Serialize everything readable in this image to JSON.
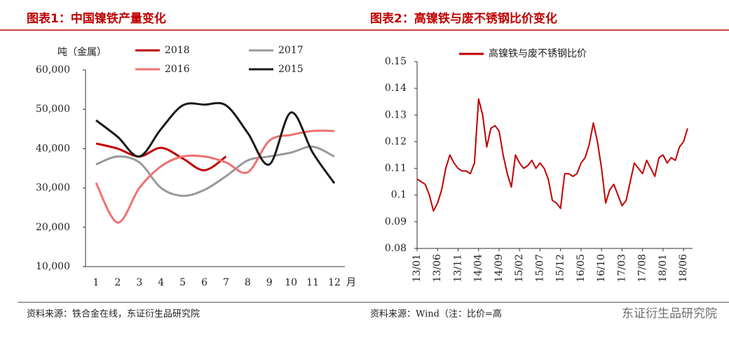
{
  "chart_data": [
    {
      "type": "line",
      "title": "图表1：中国镍铁产量变化",
      "y_label": "吨（金属）",
      "x_unit": "月",
      "categories": [
        "1",
        "2",
        "3",
        "4",
        "5",
        "6",
        "7",
        "8",
        "9",
        "10",
        "11",
        "12"
      ],
      "series": [
        {
          "name": "2018",
          "color": "#c00000",
          "values": [
            41300,
            40000,
            38000,
            40200,
            37500,
            34500,
            38000,
            null,
            null,
            null,
            null,
            null
          ]
        },
        {
          "name": "2017",
          "color": "#999999",
          "values": [
            36000,
            38000,
            36500,
            30000,
            28000,
            29500,
            33000,
            37000,
            38000,
            39000,
            40500,
            38000
          ]
        },
        {
          "name": "2016",
          "color": "#f07070",
          "values": [
            31300,
            21200,
            30000,
            35500,
            38000,
            38000,
            36500,
            34000,
            42000,
            43500,
            44500,
            44500
          ]
        },
        {
          "name": "2015",
          "color": "#1a1a1a",
          "values": [
            47200,
            43000,
            38000,
            45000,
            51000,
            51200,
            51000,
            44000,
            36000,
            49200,
            39000,
            31200
          ]
        }
      ],
      "ylim": [
        10000,
        60000
      ],
      "yticks": [
        {
          "value": 10000,
          "label": "10,000"
        },
        {
          "value": 20000,
          "label": "20,000"
        },
        {
          "value": 30000,
          "label": "30,000"
        },
        {
          "value": 40000,
          "label": "40,000"
        },
        {
          "value": 50000,
          "label": "50,000"
        },
        {
          "value": 60000,
          "label": "60,000"
        }
      ],
      "source": "资料来源：铁合金在线，东证衍生品研究院"
    },
    {
      "type": "line",
      "title": "图表2：高镍铁与废不锈钢比价变化",
      "categories": [
        "13/01",
        null,
        null,
        null,
        null,
        "13/06",
        null,
        null,
        null,
        null,
        "13/11",
        null,
        null,
        null,
        null,
        "14/04",
        null,
        null,
        null,
        null,
        "14/09",
        null,
        null,
        null,
        null,
        "15/02",
        null,
        null,
        null,
        null,
        "15/07",
        null,
        null,
        null,
        null,
        "15/12",
        null,
        null,
        null,
        null,
        "16/05",
        null,
        null,
        null,
        null,
        "16/10",
        null,
        null,
        null,
        null,
        "17/03",
        null,
        null,
        null,
        null,
        "17/08",
        null,
        null,
        null,
        null,
        "18/01",
        null,
        null,
        null,
        null,
        "18/06",
        null
      ],
      "series": [
        {
          "name": "高镍铁与废不锈钢比价",
          "color": "#c00000",
          "values": [
            0.106,
            0.105,
            0.104,
            0.1,
            0.094,
            0.097,
            0.102,
            0.11,
            0.115,
            0.112,
            0.11,
            0.109,
            0.109,
            0.108,
            0.112,
            0.136,
            0.13,
            0.118,
            0.125,
            0.126,
            0.124,
            0.115,
            0.108,
            0.103,
            0.115,
            0.112,
            0.11,
            0.111,
            0.113,
            0.11,
            0.112,
            0.11,
            0.106,
            0.098,
            0.097,
            0.095,
            0.108,
            0.108,
            0.107,
            0.108,
            0.112,
            0.114,
            0.119,
            0.127,
            0.12,
            0.11,
            0.097,
            0.102,
            0.104,
            0.1,
            0.096,
            0.098,
            0.105,
            0.112,
            0.11,
            0.108,
            0.113,
            0.11,
            0.107,
            0.114,
            0.115,
            0.112,
            0.114,
            0.113,
            0.118,
            0.12,
            0.125
          ]
        }
      ],
      "ylim": [
        0.08,
        0.15
      ],
      "yticks": [
        0.08,
        0.09,
        0.1,
        0.11,
        0.12,
        0.13,
        0.14,
        0.15
      ],
      "source": "资料来源：Wind（注：比价=高"
    }
  ],
  "watermark": "东证衍生品研究院"
}
